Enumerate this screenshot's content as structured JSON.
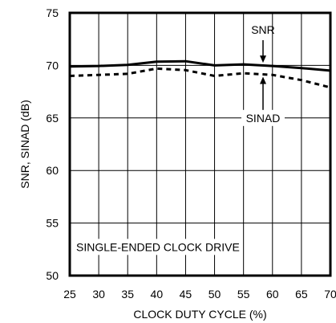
{
  "chart_data": {
    "type": "line",
    "title": "",
    "xlabel": "CLOCK DUTY CYCLE (%)",
    "ylabel": "SNR, SINAD (dB)",
    "xlim": [
      25,
      70
    ],
    "ylim": [
      50,
      75
    ],
    "x_ticks": [
      25,
      30,
      35,
      40,
      45,
      50,
      55,
      60,
      65,
      70
    ],
    "y_ticks": [
      50,
      55,
      60,
      65,
      70,
      75
    ],
    "grid": true,
    "series": [
      {
        "name": "SNR",
        "style": "solid",
        "color": "#000000",
        "x": [
          25,
          30,
          35,
          40,
          45,
          50,
          55,
          60,
          65,
          70
        ],
        "y": [
          69.9,
          69.95,
          70.05,
          70.35,
          70.4,
          70.0,
          70.1,
          69.95,
          69.75,
          69.5
        ]
      },
      {
        "name": "SINAD",
        "style": "dashed",
        "color": "#000000",
        "x": [
          25,
          30,
          35,
          40,
          45,
          50,
          55,
          60,
          65,
          70
        ],
        "y": [
          69.0,
          69.1,
          69.2,
          69.7,
          69.55,
          69.0,
          69.25,
          69.1,
          68.6,
          67.9
        ]
      }
    ],
    "annotations": {
      "snr_label": "SNR",
      "sinad_label": "SINAD",
      "note": "SINGLE-ENDED CLOCK DRIVE"
    }
  }
}
